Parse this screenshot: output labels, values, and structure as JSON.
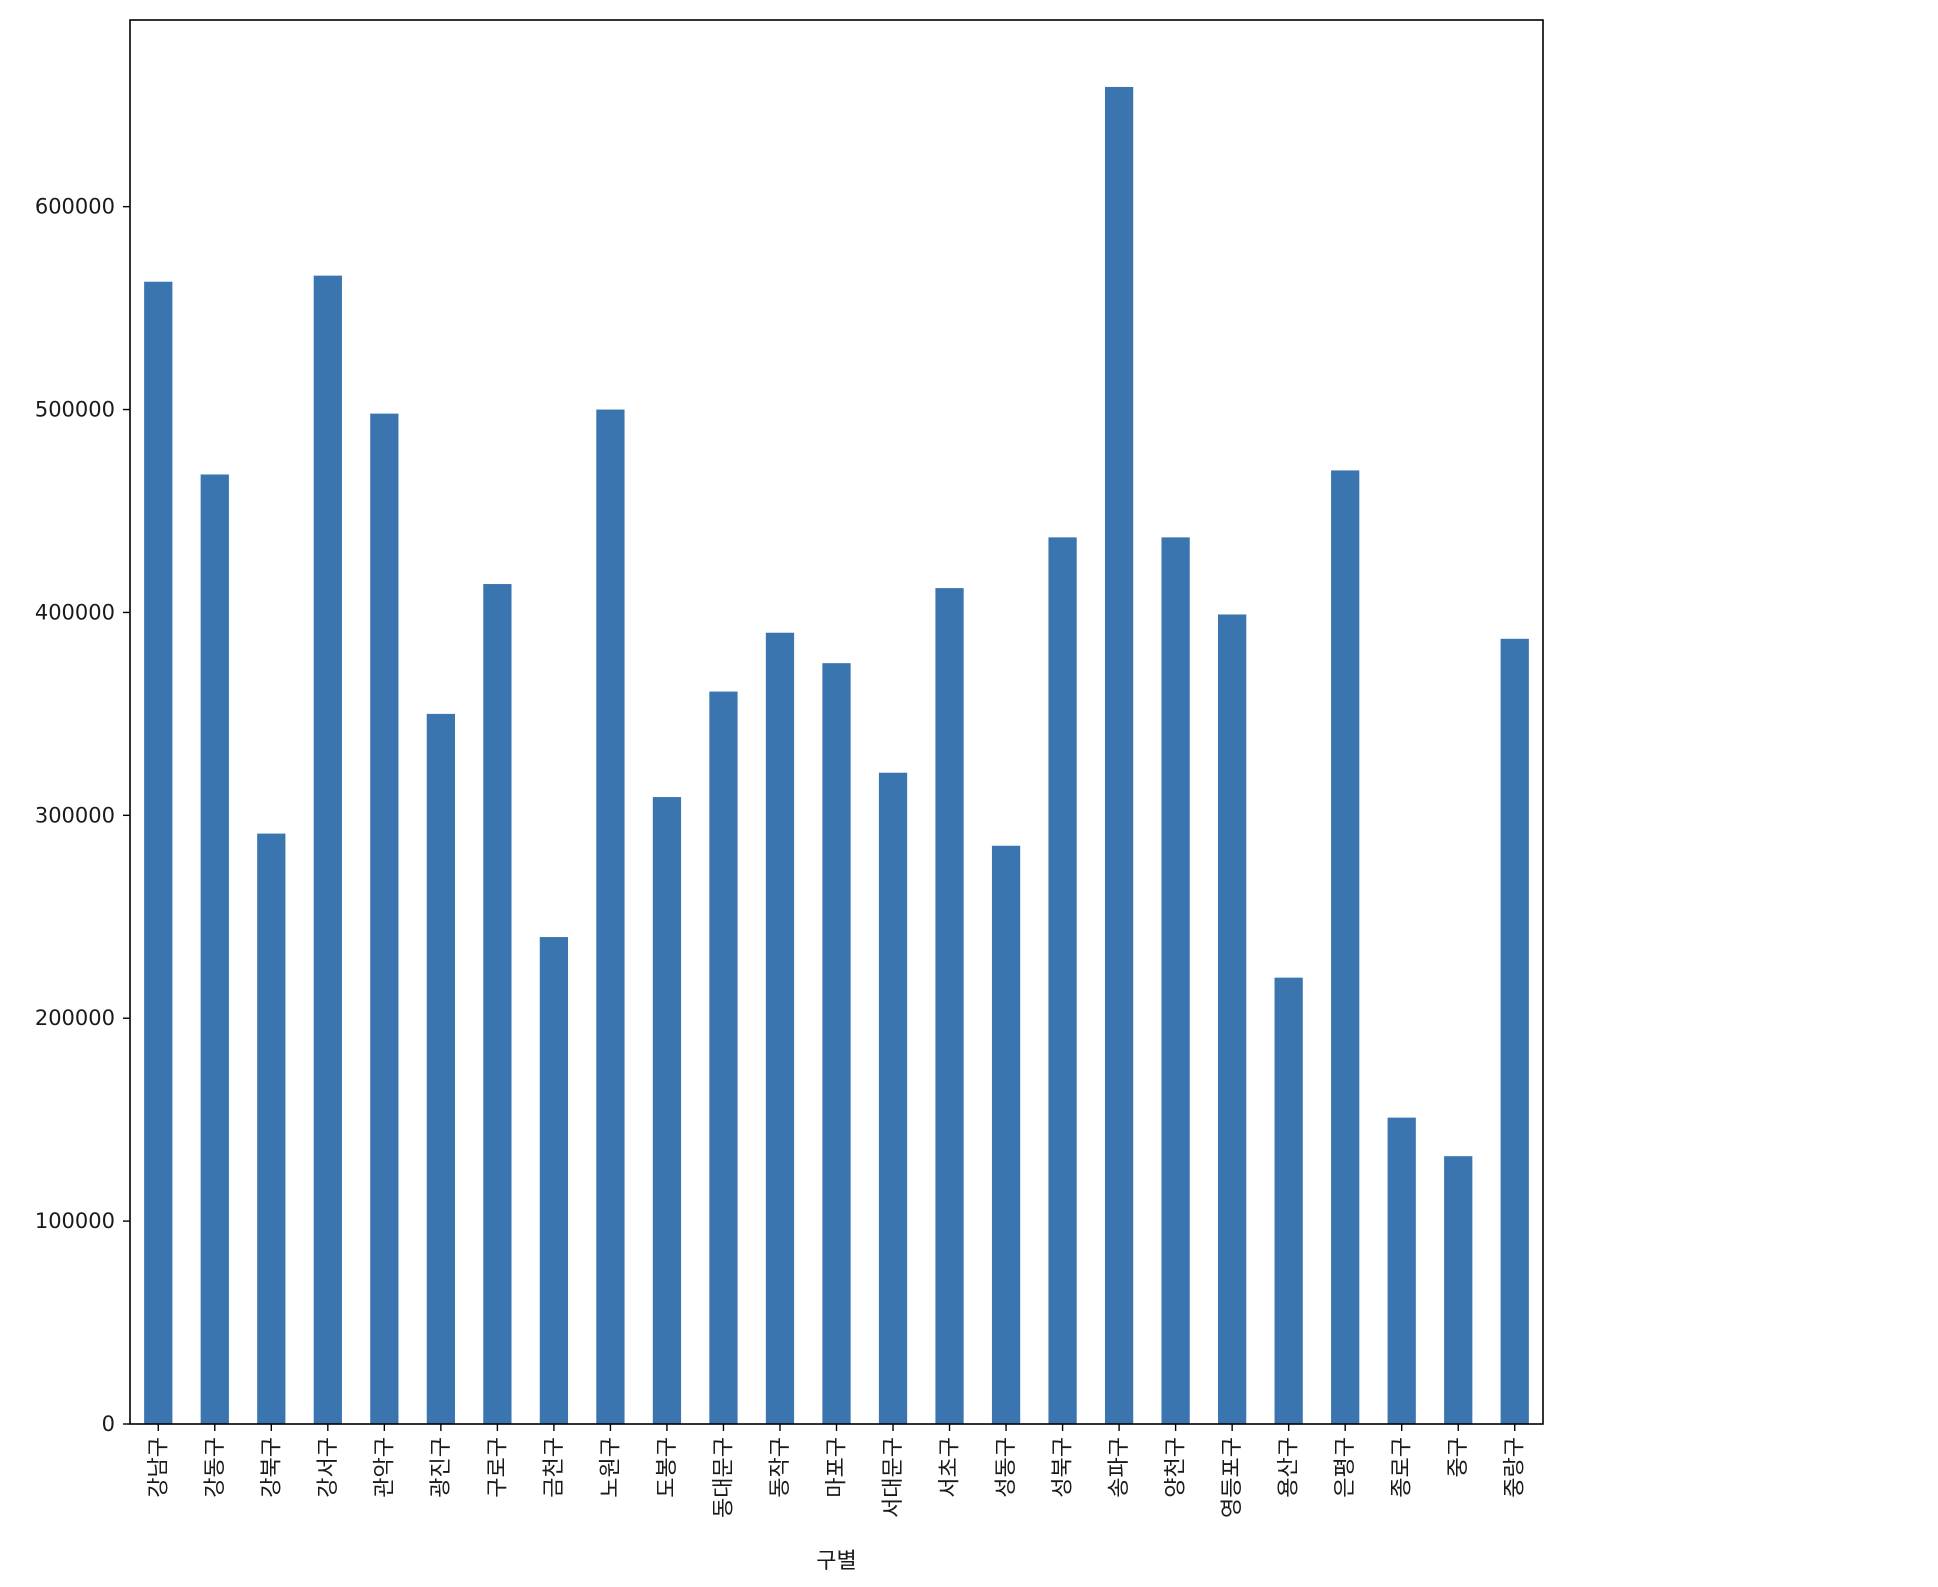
{
  "chart_data": {
    "type": "bar",
    "xlabel": "구별",
    "ylabel": "",
    "title": "",
    "ylim": [
      0,
      692000
    ],
    "yticks": [
      0,
      100000,
      200000,
      300000,
      400000,
      500000,
      600000
    ],
    "categories": [
      "강남구",
      "강동구",
      "강북구",
      "강서구",
      "관악구",
      "광진구",
      "구로구",
      "금천구",
      "노원구",
      "도봉구",
      "동대문구",
      "동작구",
      "마포구",
      "서대문구",
      "서초구",
      "성동구",
      "성북구",
      "송파구",
      "양천구",
      "영등포구",
      "용산구",
      "은평구",
      "종로구",
      "중구",
      "중랑구"
    ],
    "values": [
      563000,
      468000,
      291000,
      566000,
      498000,
      350000,
      414000,
      240000,
      500000,
      309000,
      361000,
      390000,
      375000,
      321000,
      412000,
      285000,
      437000,
      659000,
      437000,
      399000,
      220000,
      470000,
      151000,
      132000,
      387000
    ],
    "bar_color": "#3b75af",
    "grid": false,
    "legend": "none"
  }
}
